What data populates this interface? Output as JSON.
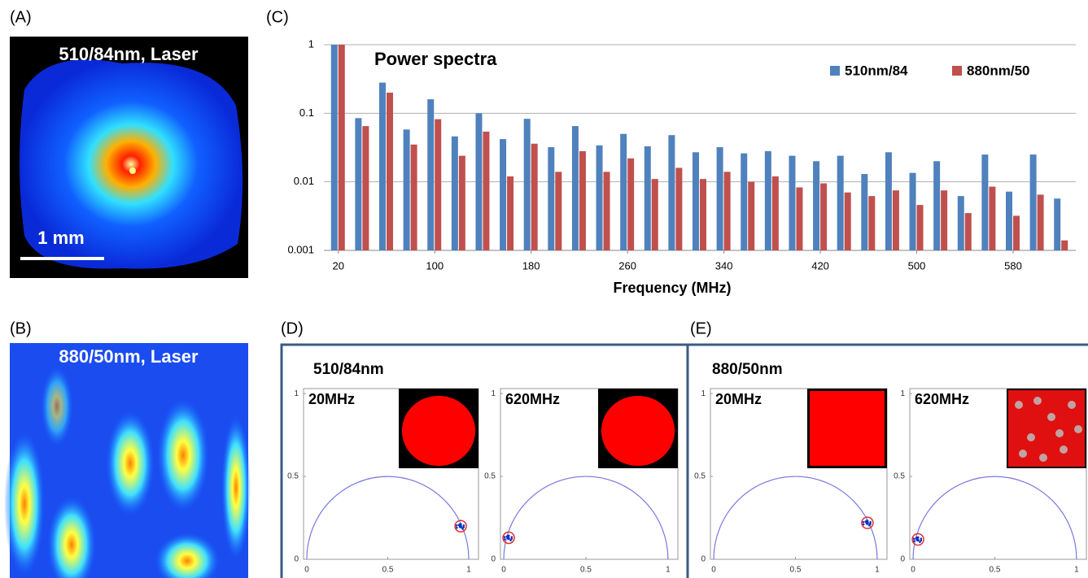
{
  "panels": {
    "a": {
      "label": "(A)",
      "caption": "510/84nm, Laser",
      "scale_bar": "1 mm"
    },
    "b": {
      "label": "(B)",
      "caption": "880/50nm, Laser"
    },
    "c": {
      "label": "(C)"
    },
    "d": {
      "label": "(D)",
      "title": "510/84nm"
    },
    "e": {
      "label": "(E)",
      "title": "880/50nm"
    }
  },
  "chart_data": [
    {
      "type": "bar",
      "title": "Power spectra",
      "x_label": "Frequency (MHz)",
      "log_y": true,
      "grid": true,
      "legend": "top-right",
      "x": [
        20,
        40,
        60,
        80,
        100,
        120,
        140,
        160,
        180,
        200,
        220,
        240,
        260,
        280,
        300,
        320,
        340,
        360,
        380,
        400,
        420,
        440,
        460,
        480,
        500,
        520,
        540,
        560,
        580,
        600,
        620
      ],
      "xlim": [
        8,
        632
      ],
      "xticks": [
        20,
        100,
        180,
        260,
        340,
        420,
        500,
        580
      ],
      "ylim": [
        0.001,
        1
      ],
      "yticks": [
        1,
        0.1,
        0.01,
        0.001
      ],
      "series": [
        {
          "name": "510nm/84",
          "color": "#4f81bd",
          "values": [
            1,
            0.085,
            0.28,
            0.058,
            0.16,
            0.046,
            0.1,
            0.042,
            0.083,
            0.032,
            0.065,
            0.034,
            0.05,
            0.033,
            0.048,
            0.027,
            0.032,
            0.026,
            0.028,
            0.024,
            0.02,
            0.024,
            0.013,
            0.027,
            0.0135,
            0.02,
            0.0062,
            0.025,
            0.0072,
            0.025,
            0.0057
          ]
        },
        {
          "name": "880nm/50",
          "color": "#c0504d",
          "values": [
            1,
            0.065,
            0.2,
            0.035,
            0.082,
            0.024,
            0.054,
            0.012,
            0.036,
            0.014,
            0.028,
            0.014,
            0.022,
            0.011,
            0.016,
            0.011,
            0.014,
            0.01,
            0.012,
            0.0083,
            0.0095,
            0.007,
            0.0062,
            0.0075,
            0.0046,
            0.0075,
            0.0035,
            0.0085,
            0.0032,
            0.0065,
            0.0014
          ]
        }
      ]
    },
    {
      "type": "phasor",
      "title": "20MHz",
      "xlim": [
        -0.02,
        1.06
      ],
      "ylim": [
        0,
        1.03
      ],
      "xticks": [
        0,
        0.5,
        1
      ],
      "yticks": [
        0,
        0.5,
        1
      ],
      "x": [
        0.95
      ],
      "values": [
        0.2
      ]
    },
    {
      "type": "phasor",
      "title": "620MHz",
      "xlim": [
        -0.02,
        1.06
      ],
      "ylim": [
        0,
        1.03
      ],
      "xticks": [
        0,
        0.5,
        1
      ],
      "yticks": [
        0,
        0.5,
        1
      ],
      "x": [
        0.03
      ],
      "values": [
        0.13
      ]
    },
    {
      "type": "phasor",
      "title": "20MHz",
      "xlim": [
        -0.02,
        1.06
      ],
      "ylim": [
        0,
        1.03
      ],
      "xticks": [
        0,
        0.5,
        1
      ],
      "yticks": [
        0,
        0.5,
        1
      ],
      "x": [
        0.94
      ],
      "values": [
        0.22
      ]
    },
    {
      "type": "phasor",
      "title": "620MHz",
      "xlim": [
        -0.02,
        1.06
      ],
      "ylim": [
        0,
        1.03
      ],
      "xticks": [
        0,
        0.5,
        1
      ],
      "yticks": [
        0,
        0.5,
        1
      ],
      "x": [
        0.03
      ],
      "values": [
        0.12
      ]
    }
  ]
}
